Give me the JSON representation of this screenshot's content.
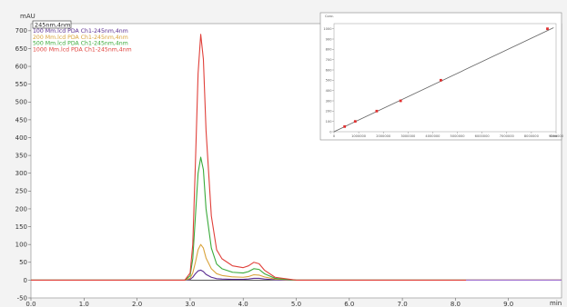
{
  "chart_data": [
    {
      "type": "line",
      "ylabel": "mAU",
      "xlabel": "min",
      "xlim": [
        0.0,
        10.0
      ],
      "ylim": [
        -50,
        720
      ],
      "x_ticks": [
        0.0,
        1.0,
        2.0,
        3.0,
        4.0,
        5.0,
        6.0,
        7.0,
        8.0,
        9.0
      ],
      "x_tick_labels": [
        "0.0",
        "1.0",
        "2.0",
        "3.0",
        "4.0",
        "5.0",
        "6.0",
        "7.0",
        "8.0",
        "9.0"
      ],
      "y_ticks": [
        -50,
        0,
        50,
        100,
        150,
        200,
        250,
        300,
        350,
        400,
        450,
        500,
        550,
        600,
        650,
        700
      ],
      "y_tick_labels": [
        "-50",
        "0",
        "50",
        "100",
        "150",
        "200",
        "250",
        "300",
        "350",
        "400",
        "450",
        "500",
        "550",
        "600",
        "650",
        "700"
      ],
      "detector_mode": "245nm,4nm",
      "legend_position": "top-left",
      "series": [
        {
          "name": "100 Mm.lcd PDA Ch1-245nm,4nm",
          "color": "#5a2d91",
          "x": [
            0.0,
            2.9,
            3.0,
            3.05,
            3.1,
            3.15,
            3.2,
            3.25,
            3.3,
            3.4,
            3.5,
            3.6,
            3.8,
            4.0,
            4.1,
            4.2,
            4.3,
            4.4,
            4.6,
            5.0,
            10.0
          ],
          "values": [
            0,
            0,
            2,
            8,
            18,
            26,
            28,
            24,
            16,
            8,
            4,
            3,
            2,
            2,
            3,
            5,
            5,
            3,
            1,
            0,
            0
          ]
        },
        {
          "name": "200 Mm.lcd PDA Ch1-245nm,4nm",
          "color": "#d9a33a",
          "x": [
            0.0,
            2.9,
            3.0,
            3.05,
            3.1,
            3.15,
            3.2,
            3.25,
            3.3,
            3.4,
            3.5,
            3.6,
            3.8,
            4.0,
            4.1,
            4.2,
            4.3,
            4.4,
            4.6,
            5.0,
            10.0
          ],
          "values": [
            0,
            0,
            5,
            20,
            50,
            85,
            100,
            90,
            62,
            32,
            18,
            13,
            9,
            8,
            10,
            15,
            14,
            9,
            3,
            0,
            0
          ]
        },
        {
          "name": "500 Mm.lcd PDA Ch1-245nm,4nm",
          "color": "#3aaa3a",
          "x": [
            0.0,
            2.9,
            3.0,
            3.05,
            3.1,
            3.15,
            3.2,
            3.25,
            3.3,
            3.4,
            3.5,
            3.6,
            3.8,
            4.0,
            4.1,
            4.2,
            4.3,
            4.4,
            4.6,
            5.0,
            10.0
          ],
          "values": [
            0,
            0,
            12,
            60,
            180,
            300,
            345,
            310,
            200,
            90,
            45,
            32,
            22,
            20,
            24,
            32,
            30,
            18,
            5,
            0,
            0
          ]
        },
        {
          "name": "1000 Mm.lcd PDA Ch1-245nm,4nm",
          "color": "#e0403a",
          "x": [
            0.0,
            2.9,
            3.0,
            3.05,
            3.1,
            3.15,
            3.2,
            3.25,
            3.3,
            3.4,
            3.5,
            3.6,
            3.8,
            4.0,
            4.1,
            4.2,
            4.3,
            4.4,
            4.6,
            5.0,
            10.0
          ],
          "values": [
            0,
            0,
            20,
            100,
            330,
            580,
            690,
            620,
            420,
            180,
            85,
            60,
            40,
            35,
            40,
            50,
            46,
            28,
            8,
            0,
            0
          ]
        },
        {
          "name": "",
          "color": "#a070d0",
          "x": [
            8.2,
            10.0
          ],
          "values": [
            0,
            0
          ]
        }
      ]
    },
    {
      "type": "scatter",
      "ylabel": "Conc.",
      "xlabel": "Area",
      "xlim": [
        0,
        9000000
      ],
      "ylim": [
        0,
        1050
      ],
      "x_ticks": [
        0,
        1000000,
        2000000,
        3000000,
        4000000,
        5000000,
        6000000,
        7000000,
        8000000,
        9000000
      ],
      "x_tick_labels": [
        "0",
        "1000000",
        "2000000",
        "3000000",
        "4000000",
        "5000000",
        "6000000",
        "7000000",
        "8000000",
        "9000000"
      ],
      "y_ticks": [
        0,
        100,
        200,
        300,
        400,
        500,
        600,
        700,
        800,
        900,
        1000
      ],
      "y_tick_labels": [
        "0",
        "100",
        "200",
        "300",
        "400",
        "500",
        "600",
        "700",
        "800",
        "900",
        "1000"
      ],
      "fit_line": {
        "x": [
          0,
          8900000
        ],
        "y": [
          0,
          1010
        ]
      },
      "points": {
        "x": [
          430000,
          860000,
          1730000,
          2700000,
          4330000,
          8650000
        ],
        "y": [
          50,
          100,
          200,
          300,
          500,
          1000
        ]
      },
      "point_color": "#e03030",
      "line_color": "#606060"
    }
  ]
}
